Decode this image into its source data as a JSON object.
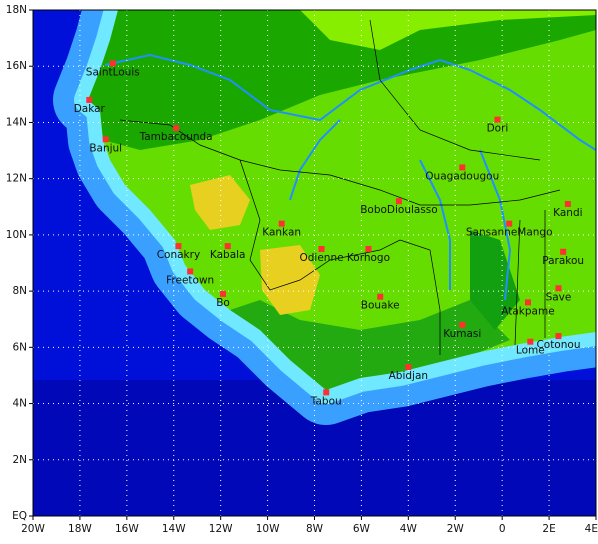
{
  "map": {
    "xlim": [
      -20,
      4
    ],
    "ylim": [
      0,
      18
    ],
    "xticks": [
      {
        "value": -20,
        "label": "20W"
      },
      {
        "value": -18,
        "label": "18W"
      },
      {
        "value": -16,
        "label": "16W"
      },
      {
        "value": -14,
        "label": "14W"
      },
      {
        "value": -12,
        "label": "12W"
      },
      {
        "value": -10,
        "label": "10W"
      },
      {
        "value": -8,
        "label": "8W"
      },
      {
        "value": -6,
        "label": "6W"
      },
      {
        "value": -4,
        "label": "4W"
      },
      {
        "value": -2,
        "label": "2W"
      },
      0,
      {
        "value": 2,
        "label": "2E"
      },
      {
        "value": 4,
        "label": "4E"
      }
    ],
    "yticks": [
      {
        "value": 0,
        "label": "EQ"
      },
      {
        "value": 2,
        "label": "2N"
      },
      {
        "value": 4,
        "label": "4N"
      },
      {
        "value": 6,
        "label": "6N"
      },
      {
        "value": 8,
        "label": "8N"
      },
      {
        "value": 10,
        "label": "10N"
      },
      {
        "value": 12,
        "label": "12N"
      },
      {
        "value": 14,
        "label": "14N"
      },
      {
        "value": 16,
        "label": "16N"
      },
      {
        "value": 18,
        "label": "18N"
      }
    ],
    "cities": [
      {
        "name": "SaintLouis",
        "lon": -16.6,
        "lat": 16.1
      },
      {
        "name": "Dakar",
        "lon": -17.6,
        "lat": 14.8
      },
      {
        "name": "Tambacounda",
        "lon": -13.9,
        "lat": 13.8
      },
      {
        "name": "Banjul",
        "lon": -16.9,
        "lat": 13.4
      },
      {
        "name": "Dori",
        "lon": -0.2,
        "lat": 14.1
      },
      {
        "name": "Ouagadougou",
        "lon": -1.7,
        "lat": 12.4
      },
      {
        "name": "BoboDioulasso",
        "lon": -4.4,
        "lat": 11.2
      },
      {
        "name": "Kandi",
        "lon": 2.8,
        "lat": 11.1
      },
      {
        "name": "Kankan",
        "lon": -9.4,
        "lat": 10.4
      },
      {
        "name": "SansanneMango",
        "lon": 0.3,
        "lat": 10.4
      },
      {
        "name": "Conakry",
        "lon": -13.8,
        "lat": 9.6
      },
      {
        "name": "Kabala",
        "lon": -11.7,
        "lat": 9.6
      },
      {
        "name": "Odienne",
        "lon": -7.7,
        "lat": 9.5
      },
      {
        "name": "Korhogo",
        "lon": -5.7,
        "lat": 9.5
      },
      {
        "name": "Parakou",
        "lon": 2.6,
        "lat": 9.4
      },
      {
        "name": "Freetown",
        "lon": -13.3,
        "lat": 8.7
      },
      {
        "name": "Bo",
        "lon": -11.9,
        "lat": 7.9
      },
      {
        "name": "Bouake",
        "lon": -5.2,
        "lat": 7.8
      },
      {
        "name": "Atakpame",
        "lon": 1.1,
        "lat": 7.6
      },
      {
        "name": "Save",
        "lon": 2.4,
        "lat": 8.1
      },
      {
        "name": "Kumasi",
        "lon": -1.7,
        "lat": 6.8
      },
      {
        "name": "Lome",
        "lon": 1.2,
        "lat": 6.2
      },
      {
        "name": "Cotonou",
        "lon": 2.4,
        "lat": 6.4
      },
      {
        "name": "Abidjan",
        "lon": -4.0,
        "lat": 5.3
      },
      {
        "name": "Tabou",
        "lon": -7.5,
        "lat": 4.4
      }
    ]
  }
}
